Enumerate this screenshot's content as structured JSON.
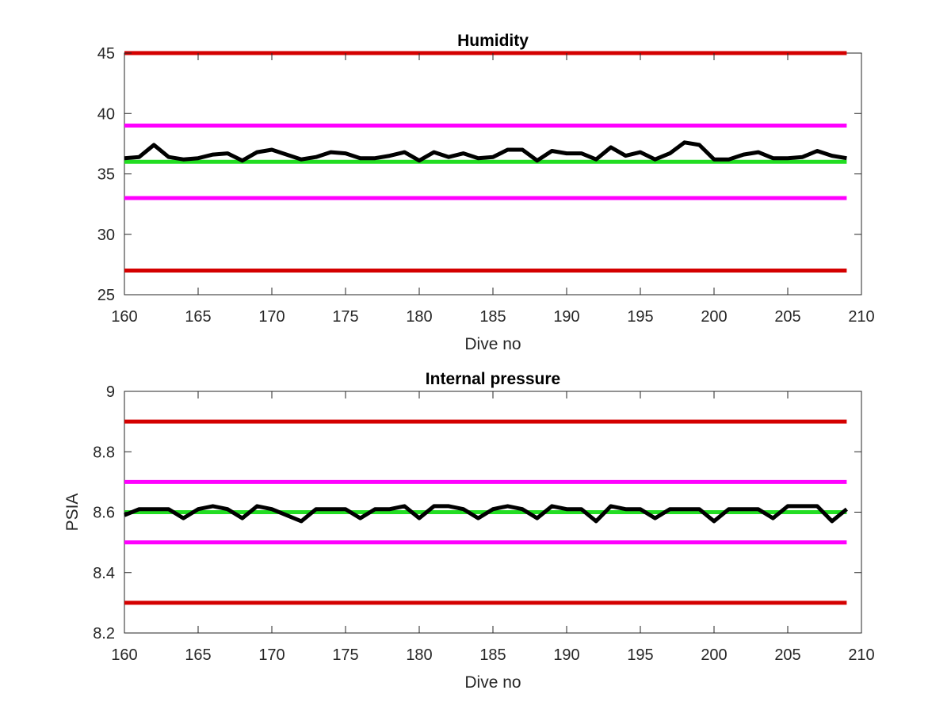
{
  "chart_data": [
    {
      "type": "line",
      "title": "Humidity",
      "xlabel": "Dive no",
      "ylabel": "",
      "xlim": [
        160,
        210
      ],
      "ylim": [
        25,
        45
      ],
      "xticks": [
        160,
        165,
        170,
        175,
        180,
        185,
        190,
        195,
        200,
        205,
        210
      ],
      "yticks": [
        25,
        30,
        35,
        40,
        45
      ],
      "grid": false,
      "colors": {
        "data": "#000000",
        "limit_outer": "#d40000",
        "limit_inner": "#ff00ff",
        "nominal": "#22dd22"
      },
      "reference_lines": [
        {
          "role": "limit_outer",
          "y": 45
        },
        {
          "role": "limit_inner",
          "y": 39
        },
        {
          "role": "nominal",
          "y": 36
        },
        {
          "role": "limit_inner",
          "y": 33
        },
        {
          "role": "limit_outer",
          "y": 27
        }
      ],
      "x": [
        160,
        161,
        162,
        163,
        164,
        165,
        166,
        167,
        168,
        169,
        170,
        171,
        172,
        173,
        174,
        175,
        176,
        177,
        178,
        179,
        180,
        181,
        182,
        183,
        184,
        185,
        186,
        187,
        188,
        189,
        190,
        191,
        192,
        193,
        194,
        195,
        196,
        197,
        198,
        199,
        200,
        201,
        202,
        203,
        204,
        205,
        206,
        207,
        208,
        209
      ],
      "values": [
        36.3,
        36.4,
        37.4,
        36.4,
        36.2,
        36.3,
        36.6,
        36.7,
        36.1,
        36.8,
        37.0,
        36.6,
        36.2,
        36.4,
        36.8,
        36.7,
        36.3,
        36.3,
        36.5,
        36.8,
        36.1,
        36.8,
        36.4,
        36.7,
        36.3,
        36.4,
        37.0,
        37.0,
        36.1,
        36.9,
        36.7,
        36.7,
        36.2,
        37.2,
        36.5,
        36.8,
        36.2,
        36.7,
        37.6,
        37.4,
        36.2,
        36.2,
        36.6,
        36.8,
        36.3,
        36.3,
        36.4,
        36.9,
        36.5,
        36.3
      ]
    },
    {
      "type": "line",
      "title": "Internal pressure",
      "xlabel": "Dive no",
      "ylabel": "PSIA",
      "xlim": [
        160,
        210
      ],
      "ylim": [
        8.2,
        9.0
      ],
      "xticks": [
        160,
        165,
        170,
        175,
        180,
        185,
        190,
        195,
        200,
        205,
        210
      ],
      "yticks": [
        8.2,
        8.4,
        8.6,
        8.8,
        9
      ],
      "ytick_labels": [
        "8.2",
        "8.4",
        "8.6",
        "8.8",
        "9"
      ],
      "grid": false,
      "colors": {
        "data": "#000000",
        "limit_outer": "#d40000",
        "limit_inner": "#ff00ff",
        "nominal": "#22dd22"
      },
      "reference_lines": [
        {
          "role": "limit_outer",
          "y": 8.9
        },
        {
          "role": "limit_inner",
          "y": 8.7
        },
        {
          "role": "nominal",
          "y": 8.6
        },
        {
          "role": "limit_inner",
          "y": 8.5
        },
        {
          "role": "limit_outer",
          "y": 8.3
        }
      ],
      "x": [
        160,
        161,
        162,
        163,
        164,
        165,
        166,
        167,
        168,
        169,
        170,
        171,
        172,
        173,
        174,
        175,
        176,
        177,
        178,
        179,
        180,
        181,
        182,
        183,
        184,
        185,
        186,
        187,
        188,
        189,
        190,
        191,
        192,
        193,
        194,
        195,
        196,
        197,
        198,
        199,
        200,
        201,
        202,
        203,
        204,
        205,
        206,
        207,
        208,
        209
      ],
      "values": [
        8.59,
        8.61,
        8.61,
        8.61,
        8.58,
        8.61,
        8.62,
        8.61,
        8.58,
        8.62,
        8.61,
        8.59,
        8.57,
        8.61,
        8.61,
        8.61,
        8.58,
        8.61,
        8.61,
        8.62,
        8.58,
        8.62,
        8.62,
        8.61,
        8.58,
        8.61,
        8.62,
        8.61,
        8.58,
        8.62,
        8.61,
        8.61,
        8.57,
        8.62,
        8.61,
        8.61,
        8.58,
        8.61,
        8.61,
        8.61,
        8.57,
        8.61,
        8.61,
        8.61,
        8.58,
        8.62,
        8.62,
        8.62,
        8.57,
        8.61
      ]
    }
  ]
}
